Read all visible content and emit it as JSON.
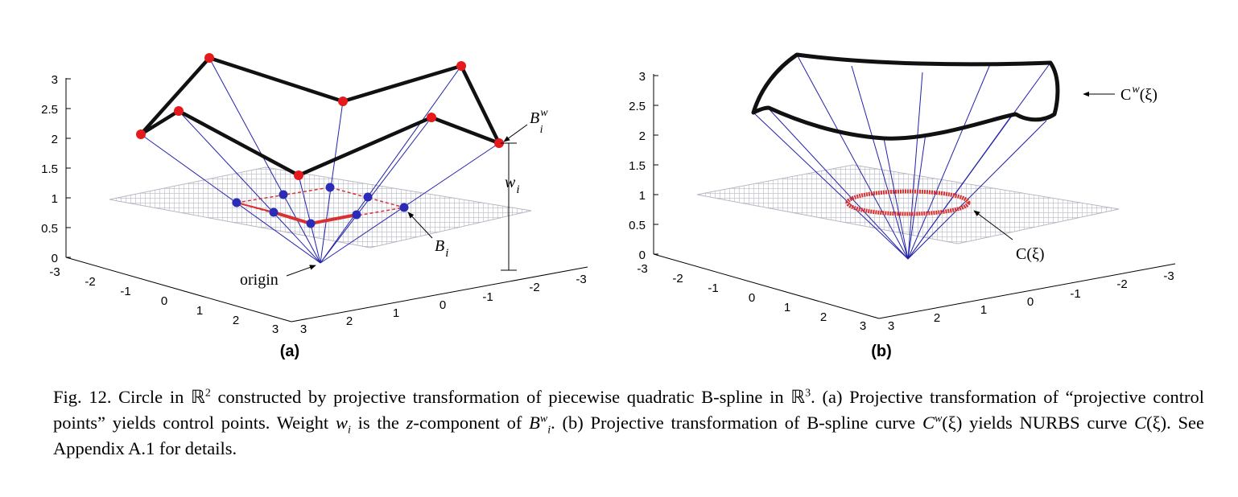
{
  "panel_a": {
    "label": "(a)",
    "z_ticks": [
      "3",
      "2.5",
      "2",
      "1.5",
      "1",
      "0.5",
      "0"
    ],
    "x_ticks": [
      "-3",
      "-2",
      "-1",
      "0",
      "1",
      "2",
      "3"
    ],
    "y_ticks": [
      "3",
      "2",
      "1",
      "0",
      "-1",
      "-2",
      "-3"
    ],
    "annot_bw": "B",
    "annot_bw_sup": "w",
    "annot_bw_sub": "i",
    "annot_wi": "w",
    "annot_wi_sub": "i",
    "annot_bi": "B",
    "annot_bi_sub": "i",
    "annot_origin": "origin"
  },
  "panel_b": {
    "label": "(b)",
    "z_ticks": [
      "3",
      "2.5",
      "2",
      "1.5",
      "1",
      "0.5",
      "0"
    ],
    "x_ticks": [
      "-3",
      "-2",
      "-1",
      "0",
      "1",
      "2",
      "3"
    ],
    "y_ticks": [
      "3",
      "2",
      "1",
      "0",
      "-1",
      "-2",
      "-3"
    ],
    "annot_cw": "C",
    "annot_cw_sup": "w",
    "annot_cw_arg": "(ξ)",
    "annot_c": "C(ξ)"
  },
  "caption": {
    "p1": "Fig. 12.  Circle in ℝ",
    "p1_sup": "2",
    "p2": " constructed by projective transformation of piecewise quadratic B-spline in ℝ",
    "p2_sup": "3",
    "p3": ". (a) Projective transformation of “projective control points” yields control points. Weight ",
    "w": "w",
    "w_sub": "i",
    "p4": " is the ",
    "z": "z",
    "p5": "-component of ",
    "B": "B",
    "B_sup": "w",
    "B_sub": "i",
    "p6": ". (b) Projective transformation of B-spline curve ",
    "C": "C",
    "C_sup": "w",
    "p7": "(ξ) yields NURBS curve ",
    "C2": "C",
    "p8": "(ξ). See Appendix A.1 for details."
  },
  "colors": {
    "projective_points": "#e41a1c",
    "control_points": "#2b2bb8",
    "rays": "#2222aa",
    "bspline": "#111111",
    "circle": "#d93030",
    "plane": "#b8b8c4"
  }
}
